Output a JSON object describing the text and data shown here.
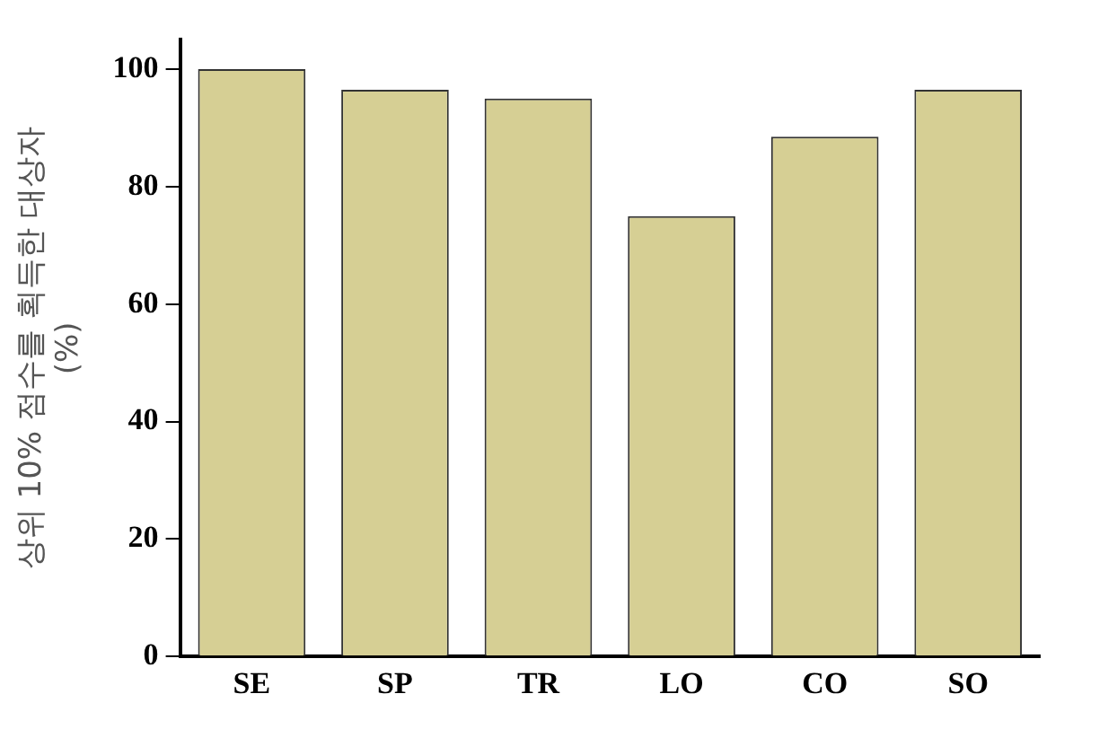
{
  "chart_data": {
    "type": "bar",
    "ylabel": [
      "상위 10% 점수를 획득한 대상자",
      "(%)"
    ],
    "categories": [
      "SE",
      "SP",
      "TR",
      "LO",
      "CO",
      "SO"
    ],
    "values": [
      100,
      96.5,
      95,
      75,
      88.5,
      96.5
    ],
    "color": "#d6cf94",
    "ylim": [
      0,
      105
    ],
    "yticks": [
      0,
      20,
      40,
      60,
      80,
      100
    ],
    "grid": false,
    "legend": false
  }
}
